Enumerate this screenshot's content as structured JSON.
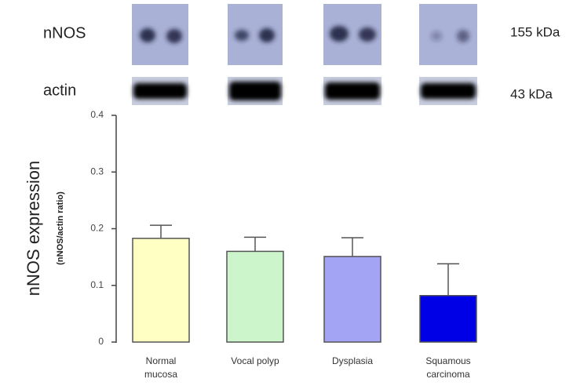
{
  "blot": {
    "rows": [
      {
        "label": "nNOS",
        "size": "155 kDa"
      },
      {
        "label": "actin",
        "size": "43 kDa"
      }
    ]
  },
  "chart_data": {
    "type": "bar",
    "y_label": "nNOS expression",
    "y_sublabel": "(nNOS/actin ratio)",
    "categories": [
      [
        "Normal",
        "mucosa"
      ],
      [
        "Vocal polyp"
      ],
      [
        "Dysplasia"
      ],
      [
        "Squamous",
        "carcinoma"
      ]
    ],
    "values": [
      0.183,
      0.16,
      0.151,
      0.082
    ],
    "errors": [
      0.023,
      0.025,
      0.033,
      0.056
    ],
    "colors": [
      "#ffffc4",
      "#ccf5cc",
      "#a4a4f4",
      "#0000e6"
    ],
    "ylim": [
      0,
      0.4
    ],
    "yticks": [
      0,
      0.1,
      0.2,
      0.3,
      0.4
    ]
  }
}
